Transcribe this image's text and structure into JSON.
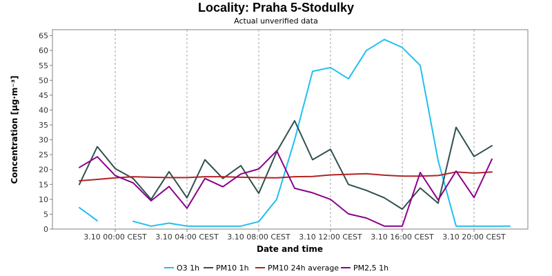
{
  "chart_data": {
    "type": "line",
    "title": "Locality: Praha 5-Stodulky",
    "subtitle": "Actual unverified data",
    "xlabel": "Date and time",
    "ylabel": "Concentration [µg·m⁻³]",
    "ylim": [
      0,
      67
    ],
    "yticks": [
      0,
      5,
      10,
      15,
      20,
      25,
      30,
      35,
      40,
      45,
      50,
      55,
      60,
      65
    ],
    "xlim": [
      "3.10 -03:30",
      "3.10 23:00"
    ],
    "xticks": [
      {
        "label": "3.10 00:00 CEST",
        "hour": 0
      },
      {
        "label": "3.10 04:00 CEST",
        "hour": 4
      },
      {
        "label": "3.10 08:00 CEST",
        "hour": 8
      },
      {
        "label": "3.10 12:00 CEST",
        "hour": 12
      },
      {
        "label": "3.10 16:00 CEST",
        "hour": 16
      },
      {
        "label": "3.10 20:00 CEST",
        "hour": 20
      }
    ],
    "x_hours": [
      -2,
      -1,
      0,
      1,
      2,
      3,
      4,
      5,
      6,
      7,
      8,
      9,
      10,
      11,
      12,
      13,
      14,
      15,
      16,
      17,
      18,
      19,
      20,
      21,
      22
    ],
    "grid": true,
    "legend_position": "bottom",
    "series": [
      {
        "name": "O3 1h",
        "color": "#1ec0ef",
        "values": [
          7.2,
          2.8,
          null,
          2.6,
          1.0,
          2.0,
          1.0,
          1.0,
          1.0,
          1.0,
          2.5,
          10.0,
          30.0,
          53.0,
          54.3,
          50.5,
          60.0,
          63.7,
          61.0,
          55.0,
          23.0,
          1.0,
          1.0,
          1.0,
          1.0
        ]
      },
      {
        "name": "PM10 1h",
        "color": "#2f4f4f",
        "values": [
          15.0,
          27.7,
          20.3,
          17.0,
          10.0,
          19.3,
          10.5,
          23.3,
          17.0,
          21.3,
          12.0,
          26.0,
          36.4,
          23.3,
          26.8,
          15.0,
          13.0,
          10.5,
          6.7,
          13.8,
          8.7,
          34.2,
          24.4,
          28.0,
          null
        ]
      },
      {
        "name": "PM10 24h average",
        "color": "#b22222",
        "values": [
          16.2,
          16.7,
          17.2,
          17.6,
          17.4,
          17.3,
          17.3,
          17.6,
          17.6,
          17.4,
          17.3,
          17.2,
          17.6,
          17.7,
          18.2,
          18.4,
          18.6,
          18.1,
          17.8,
          17.8,
          18.0,
          19.2,
          18.8,
          19.2,
          null
        ]
      },
      {
        "name": "PM2,5 1h",
        "color": "#8b008b",
        "values": [
          20.7,
          24.3,
          18.0,
          15.5,
          9.5,
          14.3,
          7.0,
          17.0,
          14.2,
          18.5,
          20.2,
          26.3,
          13.7,
          12.2,
          10.0,
          5.1,
          3.7,
          1.0,
          1.0,
          19.0,
          9.8,
          19.5,
          10.6,
          23.5,
          null
        ]
      }
    ]
  }
}
